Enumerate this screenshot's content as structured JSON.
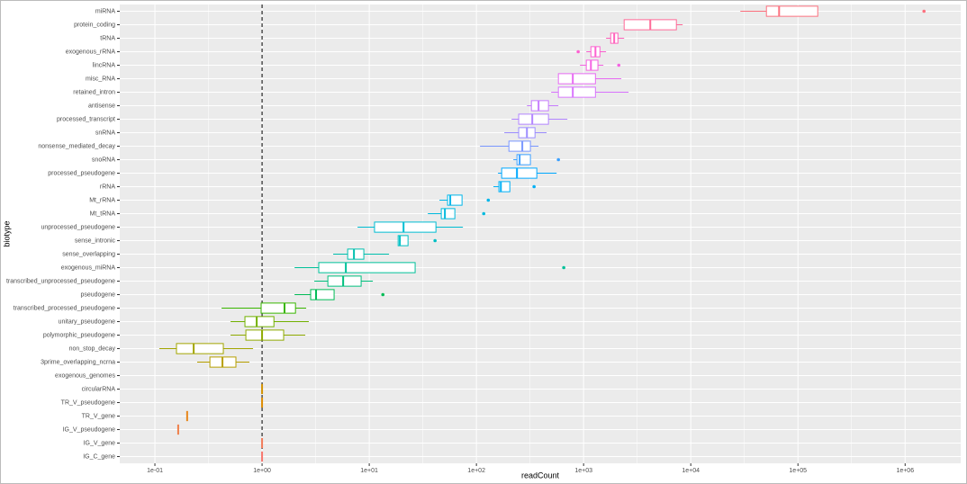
{
  "chart_data": {
    "type": "boxplot",
    "orientation": "horizontal",
    "x_label": "readCount",
    "y_label": "biotype",
    "log_x": true,
    "grid": true,
    "xlim": [
      0.047,
      3300000
    ],
    "xticks": [
      {
        "value": 0.1,
        "label": "1e-01"
      },
      {
        "value": 1,
        "label": "1e+00"
      },
      {
        "value": 10,
        "label": "1e+01"
      },
      {
        "value": 100,
        "label": "1e+02"
      },
      {
        "value": 1000,
        "label": "1e+03"
      },
      {
        "value": 10000,
        "label": "1e+04"
      },
      {
        "value": 100000,
        "label": "1e+05"
      },
      {
        "value": 1000000,
        "label": "1e+06"
      }
    ],
    "vline": 1,
    "vline_style": "dashed",
    "categories": [
      "miRNA",
      "protein_coding",
      "tRNA",
      "exogenous_rRNA",
      "lincRNA",
      "misc_RNA",
      "retained_intron",
      "antisense",
      "processed_transcript",
      "snRNA",
      "nonsense_mediated_decay",
      "snoRNA",
      "processed_pseudogene",
      "rRNA",
      "Mt_rRNA",
      "Mt_tRNA",
      "unprocessed_pseudogene",
      "sense_intronic",
      "sense_overlapping",
      "exogenous_miRNA",
      "transcribed_unprocessed_pseudogene",
      "pseudogene",
      "transcribed_processed_pseudogene",
      "unitary_pseudogene",
      "polymorphic_pseudogene",
      "non_stop_decay",
      "3prime_overlapping_ncrna",
      "exogenous_genomes",
      "circularRNA",
      "TR_V_pseudogene",
      "TR_V_gene",
      "IG_V_pseudogene",
      "IG_V_gene",
      "IG_C_gene"
    ],
    "min": [
      29000,
      2390,
      1620,
      1060,
      925,
      582,
      498,
      296,
      213,
      182,
      108,
      221,
      159,
      144,
      45.2,
      35.2,
      7.78,
      18.6,
      4.61,
      2.01,
      3.07,
      2.01,
      0.419,
      0.508,
      0.508,
      0.11,
      0.248,
      null,
      1,
      1,
      0.2,
      0.165,
      1,
      1
    ],
    "q1": [
      50800,
      2390,
      1790,
      1170,
      1060,
      582,
      582,
      326,
      248,
      248,
      201,
      239,
      172,
      162,
      53.8,
      47,
      11.2,
      18.6,
      6.29,
      3.38,
      4.11,
      2.84,
      0.98,
      0.692,
      0.706,
      0.159,
      0.326,
      null,
      1,
      1,
      0.2,
      0.165,
      1,
      1
    ],
    "median": [
      66700,
      4190,
      1930,
      1290,
      1170,
      793,
      793,
      380,
      332,
      296,
      268,
      253,
      239,
      169,
      57,
      50.8,
      20.9,
      19.3,
      7.2,
      6.05,
      5.71,
      3.19,
      1.62,
      0.891,
      1,
      0.23,
      0.427,
      null,
      1,
      1,
      0.2,
      0.165,
      1,
      1
    ],
    "q3": [
      153000,
      7340,
      2090,
      1420,
      1360,
      1290,
      1290,
      470,
      470,
      352,
      319,
      319,
      366,
      205,
      73.4,
      62.9,
      41.9,
      23,
      8.9,
      26.8,
      8.4,
      4.7,
      2.05,
      1.29,
      1.59,
      0.435,
      0.57,
      null,
      1,
      1,
      0.2,
      0.165,
      1,
      1
    ],
    "max": [
      153000,
      8400,
      2390,
      1620,
      1530,
      2250,
      2630,
      582,
      706,
      452,
      380,
      319,
      560,
      205,
      73.4,
      62.9,
      74.8,
      23,
      15.3,
      26.8,
      10.8,
      4.7,
      2.58,
      2.73,
      2.53,
      0.824,
      0.762,
      null,
      1,
      1,
      0.2,
      0.165,
      1,
      1
    ],
    "outliers": [
      [
        1500000
      ],
      [],
      [],
      [
        890
      ],
      [
        2130
      ],
      [],
      [],
      [],
      [],
      [],
      [],
      [
        582
      ],
      [],
      [
        345
      ],
      [
        129
      ],
      [
        117
      ],
      [],
      [
        41.1
      ],
      [],
      [
        653
      ],
      [],
      [
        13.4
      ],
      [],
      [],
      [],
      [],
      [],
      [],
      [],
      [],
      [],
      [],
      [],
      []
    ],
    "colors": [
      "#FC717F",
      "#FF6A98",
      "#FF62BC",
      "#FD61D1",
      "#F564E3",
      "#E76BF3",
      "#D874FD",
      "#C77CFF",
      "#B385FF",
      "#9C8DFF",
      "#7997FF",
      "#3DA1FF",
      "#00A9FF",
      "#00B0F6",
      "#00B6EA",
      "#00BADE",
      "#00BDD2",
      "#00BFC4",
      "#00C0AF",
      "#00C19A",
      "#00BF7D",
      "#00BC56",
      "#39B600",
      "#72B000",
      "#8FAA00",
      "#A3A500",
      "#B79F00",
      "#C49A00",
      "#D39200",
      "#DE8C00",
      "#E7861B",
      "#EF7F49",
      "#F37B59",
      "#F8766D"
    ]
  }
}
